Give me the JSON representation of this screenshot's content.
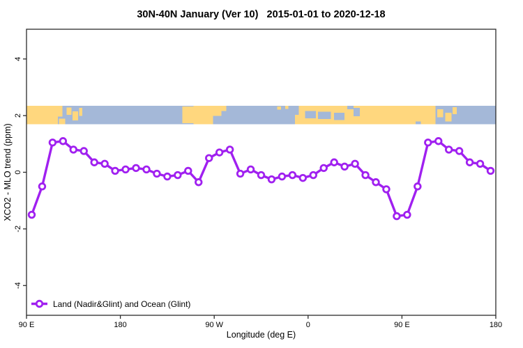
{
  "chart_data": {
    "type": "line",
    "title": "30N-40N January (Ver 10)   2015-01-01 to 2020-12-18",
    "xlabel": "Longitude (deg E)",
    "ylabel": "XCO2 - MLO trend (ppm)",
    "xlim": [
      90,
      540
    ],
    "ylim": [
      -5.05,
      5.05
    ],
    "grid": false,
    "x_ticks": [
      {
        "value": 90,
        "label": "90 E"
      },
      {
        "value": 180,
        "label": "180"
      },
      {
        "value": 270,
        "label": "90 W"
      },
      {
        "value": 360,
        "label": "0"
      },
      {
        "value": 450,
        "label": "90 E"
      },
      {
        "value": 540,
        "label": "180"
      }
    ],
    "y_ticks": [
      {
        "value": -4,
        "label": "-4"
      },
      {
        "value": -2,
        "label": "-2"
      },
      {
        "value": 0,
        "label": "0"
      },
      {
        "value": 2,
        "label": "2"
      },
      {
        "value": 4,
        "label": "4"
      }
    ],
    "legend": {
      "label": "Land (Nadir&Glint) and Ocean (Glint)",
      "position": "bottom-left",
      "marker": "open-circle-on-line"
    },
    "series": [
      {
        "name": "Land (Nadir&Glint) and Ocean (Glint)",
        "color": "#A020F0",
        "marker": "open-circle",
        "x": [
          95,
          105,
          115,
          125,
          135,
          145,
          155,
          165,
          175,
          185,
          195,
          205,
          215,
          225,
          235,
          245,
          255,
          265,
          275,
          285,
          295,
          305,
          315,
          325,
          335,
          345,
          355,
          365,
          375,
          385,
          395,
          405,
          415,
          425,
          435,
          445,
          455,
          465,
          475,
          485,
          495,
          505,
          515,
          525,
          535
        ],
        "y": [
          -1.5,
          -0.5,
          1.05,
          1.1,
          0.8,
          0.75,
          0.35,
          0.3,
          0.05,
          0.1,
          0.15,
          0.1,
          -0.05,
          -0.15,
          -0.1,
          0.05,
          -0.35,
          0.5,
          0.7,
          0.8,
          -0.05,
          0.1,
          -0.1,
          -0.25,
          -0.15,
          -0.1,
          -0.2,
          -0.1,
          0.15,
          0.35,
          0.2,
          0.3,
          -0.1,
          -0.35,
          -0.6,
          -1.55,
          -1.5,
          -0.5,
          1.05,
          1.1,
          0.8,
          0.75,
          0.35,
          0.3,
          0.05
        ]
      }
    ],
    "map_band": {
      "description": "30N-40N world coastline strip drawn across the plot at y ~ 2",
      "y_range": [
        1.7,
        2.35
      ],
      "ocean_color": "#A4B8D8",
      "land_color": "#FFD77E",
      "land_segments": [
        [
          90,
          120,
          0,
          1
        ],
        [
          120,
          124.5,
          0,
          0.6
        ],
        [
          121,
          127,
          0.7,
          1
        ],
        [
          128.5,
          133,
          0.1,
          0.5
        ],
        [
          134,
          139.5,
          0.3,
          0.8
        ],
        [
          140.5,
          143.5,
          0.12,
          0.55
        ],
        [
          239.5,
          250,
          0.05,
          0.95
        ],
        [
          250,
          269,
          0,
          1
        ],
        [
          269,
          277,
          0,
          0.55
        ],
        [
          277,
          281.5,
          0,
          0.28
        ],
        [
          330.5,
          334,
          0.04,
          0.22
        ],
        [
          338,
          341,
          0,
          0.18
        ],
        [
          347.5,
          354,
          0.5,
          1
        ],
        [
          351,
          360,
          0,
          1
        ],
        [
          360,
          482,
          0,
          1
        ],
        [
          484,
          489.5,
          0.2,
          0.62
        ],
        [
          491.5,
          497.5,
          0.38,
          0.85
        ],
        [
          498.5,
          502.5,
          0.08,
          0.45
        ]
      ],
      "sea_patches": [
        [
          357,
          367.5,
          0.28,
          0.68
        ],
        [
          369.5,
          382,
          0.32,
          0.72
        ],
        [
          385,
          395,
          0.38,
          0.78
        ],
        [
          397.5,
          403.5,
          0,
          0.2
        ],
        [
          403.5,
          409.5,
          0.12,
          0.58
        ],
        [
          463,
          468,
          0.85,
          1
        ]
      ]
    }
  }
}
